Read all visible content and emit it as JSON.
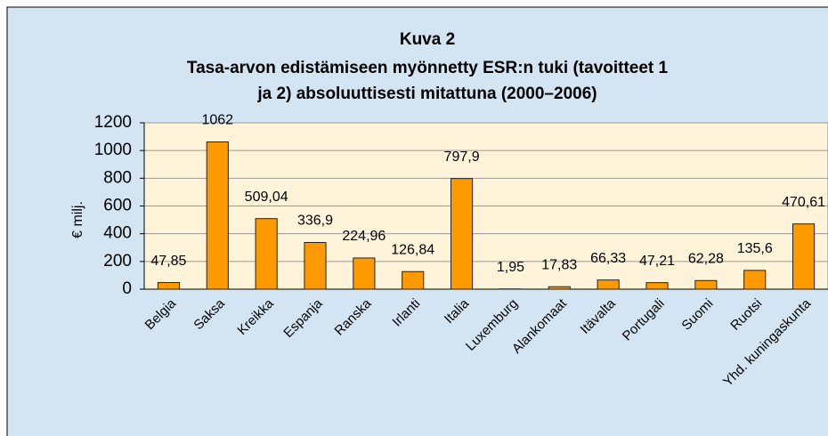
{
  "chart_data": {
    "type": "bar",
    "title": [
      "Kuva 2",
      "Tasa-arvon edistämiseen myönnetty ESR:n tuki (tavoitteet 1",
      "ja 2) absoluuttisesti mitattuna (2000–2006)"
    ],
    "y_label": "€ milj.",
    "categories": [
      "Belgia",
      "Saksa",
      "Kreikka",
      "Espanja",
      "Ranska",
      "Irlanti",
      "Italia",
      "Luxemburg",
      "Alankomaat",
      "Itävalta",
      "Portugali",
      "Suomi",
      "Ruotsi",
      "Yhd. kuningaskunta"
    ],
    "values": [
      47.85,
      1062,
      509.04,
      336.9,
      224.96,
      126.84,
      797.9,
      1.95,
      17.83,
      66.33,
      47.21,
      62.28,
      135.6,
      470.61
    ],
    "value_labels": [
      "47,85",
      "1062",
      "509,04",
      "336,9",
      "224,96",
      "126,84",
      "797,9",
      "1,95",
      "17,83",
      "66,33",
      "47,21",
      "62,28",
      "135,6",
      "470,61"
    ],
    "color": "#ff9900",
    "ylim": [
      0,
      1200
    ],
    "yticks": [
      0,
      200,
      400,
      600,
      800,
      1000,
      1200
    ],
    "grid": true
  }
}
